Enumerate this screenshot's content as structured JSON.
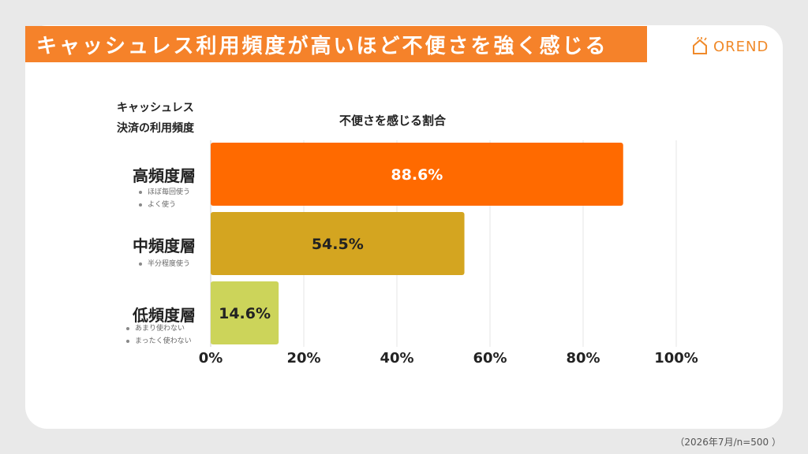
{
  "title": "キャッシュレス利用頻度が高いほど不便さを強く感じる",
  "logo": {
    "text": "OREND",
    "icon": "house-icon"
  },
  "footnote": "（2026年7月/n=500 ）",
  "colors": {
    "banner": "#f5822a",
    "high": "#ff6a00",
    "mid": "#d4a520",
    "low": "#ccd45a"
  },
  "chart_data": {
    "type": "bar",
    "orientation": "horizontal",
    "title": "",
    "ylabel_lines": [
      "キャッシュレス",
      "決済の利用頻度"
    ],
    "xlabel": "不便さを感じる割合",
    "categories": [
      {
        "label": "高頻度層",
        "sublabels": [
          "ほぼ毎回使う",
          "よく使う"
        ]
      },
      {
        "label": "中頻度層",
        "sublabels": [
          "半分程度使う"
        ]
      },
      {
        "label": "低頻度層",
        "sublabels": [
          "あまり使わない",
          "まったく使わない"
        ]
      }
    ],
    "values": [
      88.6,
      54.5,
      14.6
    ],
    "value_labels": [
      "88.6%",
      "54.5%",
      "14.6%"
    ],
    "xlim": [
      0,
      100
    ],
    "xticks": [
      "0%",
      "20%",
      "40%",
      "60%",
      "80%",
      "100%"
    ],
    "grid": true,
    "legend": "none"
  }
}
